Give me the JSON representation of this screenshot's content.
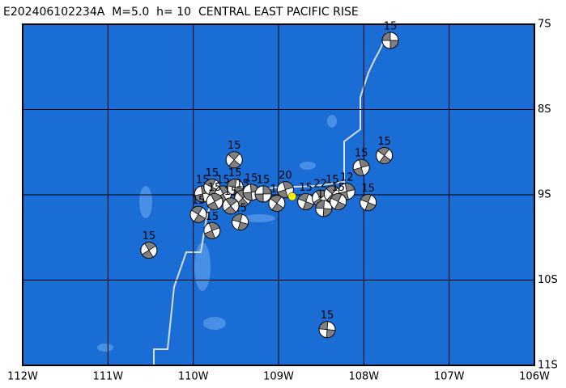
{
  "map": {
    "title": "E202406102234A  M=5.0  h= 10  CENTRAL EAST PACIFIC RISE",
    "xlim": [
      -112,
      -106
    ],
    "ylim": [
      -11,
      -7
    ],
    "xticks": [
      {
        "value": -112,
        "label": "112W"
      },
      {
        "value": -111,
        "label": "111W"
      },
      {
        "value": -110,
        "label": "110W"
      },
      {
        "value": -109,
        "label": "109W"
      },
      {
        "value": -108,
        "label": "108W"
      },
      {
        "value": -107,
        "label": "107W"
      },
      {
        "value": -106,
        "label": "106W"
      }
    ],
    "yticks": [
      {
        "value": -7,
        "label": "7S"
      },
      {
        "value": -8,
        "label": "8S"
      },
      {
        "value": -9,
        "label": "9S"
      },
      {
        "value": -10,
        "label": "10S"
      },
      {
        "value": -11,
        "label": "11S"
      }
    ],
    "epicenter": {
      "lon": -108.84,
      "lat": -9.02,
      "color": "#ffee00"
    },
    "events": [
      {
        "lon": -107.69,
        "lat": -7.19,
        "depth": 15
      },
      {
        "lon": -107.76,
        "lat": -8.54,
        "depth": 15
      },
      {
        "lon": -108.03,
        "lat": -8.68,
        "depth": 15
      },
      {
        "lon": -107.95,
        "lat": -9.09,
        "depth": 15
      },
      {
        "lon": -110.52,
        "lat": -9.65,
        "depth": 15
      },
      {
        "lon": -108.43,
        "lat": -10.58,
        "depth": 15
      },
      {
        "lon": -109.52,
        "lat": -8.59,
        "depth": 15
      },
      {
        "lon": -109.89,
        "lat": -8.99,
        "depth": 15
      },
      {
        "lon": -109.78,
        "lat": -8.91,
        "depth": 15
      },
      {
        "lon": -109.65,
        "lat": -8.99,
        "depth": 15
      },
      {
        "lon": -109.51,
        "lat": -8.91,
        "depth": 15
      },
      {
        "lon": -109.42,
        "lat": -9.04,
        "depth": 15
      },
      {
        "lon": -109.32,
        "lat": -8.97,
        "depth": 15
      },
      {
        "lon": -109.94,
        "lat": -9.23,
        "depth": 15
      },
      {
        "lon": -109.78,
        "lat": -9.42,
        "depth": 15
      },
      {
        "lon": -109.45,
        "lat": -9.32,
        "depth": 15
      },
      {
        "lon": -109.56,
        "lat": -9.13,
        "depth": 15
      },
      {
        "lon": -109.18,
        "lat": -8.99,
        "depth": 15
      },
      {
        "lon": -109.02,
        "lat": -9.1,
        "depth": 15
      },
      {
        "lon": -108.92,
        "lat": -8.94,
        "depth": 20
      },
      {
        "lon": -108.68,
        "lat": -9.08,
        "depth": 15
      },
      {
        "lon": -108.51,
        "lat": -9.04,
        "depth": 22
      },
      {
        "lon": -108.47,
        "lat": -9.16,
        "depth": 15
      },
      {
        "lon": -108.37,
        "lat": -8.99,
        "depth": 15
      },
      {
        "lon": -108.2,
        "lat": -8.96,
        "depth": 12
      },
      {
        "lon": -108.3,
        "lat": -9.08,
        "depth": 15
      },
      {
        "lon": -109.75,
        "lat": -9.08,
        "depth": 15
      }
    ]
  }
}
